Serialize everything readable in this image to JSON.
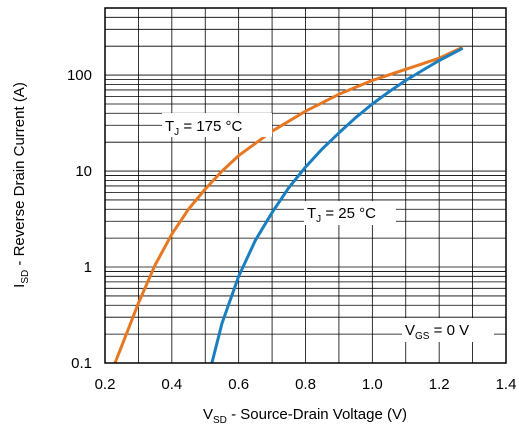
{
  "chart_data": {
    "type": "line",
    "title": "",
    "xlabel": {
      "main": "V",
      "sub": "SD",
      "rest": " - Source-Drain Voltage (V)"
    },
    "ylabel": {
      "main": "I",
      "sub": "SD",
      "rest": " - Reverse Drain Current (A)"
    },
    "xlim": [
      0.2,
      1.4
    ],
    "ylim": [
      0.1,
      500
    ],
    "y_scale": "log",
    "grid": true,
    "x_ticks": [
      "0.2",
      "0.4",
      "0.6",
      "0.8",
      "1.0",
      "1.2",
      "1.4"
    ],
    "y_ticks": [
      {
        "value": 0.1,
        "label": "0.1"
      },
      {
        "value": 1,
        "label": "1"
      },
      {
        "value": 10,
        "label": "10"
      },
      {
        "value": 100,
        "label": "100"
      }
    ],
    "series": [
      {
        "name": "",
        "color": "#e87722",
        "x": [
          0.23,
          0.25,
          0.3,
          0.35,
          0.4,
          0.45,
          0.5,
          0.55,
          0.6,
          0.7,
          0.8,
          0.9,
          1.0,
          1.1,
          1.2,
          1.27
        ],
        "y": [
          0.1,
          0.15,
          0.42,
          1.05,
          2.2,
          4.0,
          6.5,
          10.0,
          14.5,
          26,
          42,
          63,
          88,
          115,
          150,
          195
        ]
      },
      {
        "name": "",
        "color": "#1a7fc1",
        "x": [
          0.52,
          0.55,
          0.6,
          0.65,
          0.7,
          0.75,
          0.8,
          0.85,
          0.9,
          0.95,
          1.0,
          1.05,
          1.1,
          1.15,
          1.2,
          1.27
        ],
        "y": [
          0.1,
          0.26,
          0.8,
          1.9,
          3.7,
          6.7,
          11,
          17,
          25,
          36,
          50,
          67,
          88,
          112,
          142,
          190
        ]
      }
    ],
    "annotations": [
      {
        "id": "t175",
        "main": "T",
        "sub": "J",
        "rest": " = 175 °C"
      },
      {
        "id": "t25",
        "main": "T",
        "sub": "J",
        "rest": " = 25 °C"
      },
      {
        "id": "vgs",
        "main": "V",
        "sub": "GS",
        "rest": " = 0 V"
      }
    ]
  }
}
